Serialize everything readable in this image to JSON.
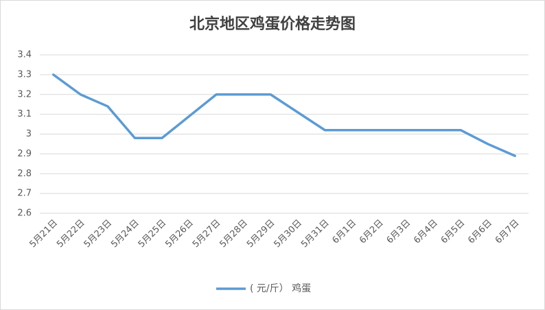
{
  "chart_data": {
    "type": "line",
    "title": "北京地区鸡蛋价格走势图",
    "categories": [
      "5月21日",
      "5月22日",
      "5月23日",
      "5月24日",
      "5月25日",
      "5月26日",
      "5月27日",
      "5月28日",
      "5月29日",
      "5月30日",
      "5月31日",
      "6月1日",
      "6月2日",
      "6月3日",
      "6月4日",
      "6月5日",
      "6月6日",
      "6月7日"
    ],
    "series": [
      {
        "name": "( 元/斤） 鸡蛋",
        "color": "#5b9bd5",
        "values": [
          3.3,
          3.2,
          3.14,
          2.98,
          2.98,
          3.09,
          3.2,
          3.2,
          3.2,
          3.11,
          3.02,
          3.02,
          3.02,
          3.02,
          3.02,
          3.02,
          2.95,
          2.89
        ]
      }
    ],
    "ylim": [
      2.6,
      3.4
    ],
    "yticks": [
      2.6,
      2.7,
      2.8,
      2.9,
      3,
      3.1,
      3.2,
      3.3,
      3.4
    ],
    "grid": true,
    "legend": "bottom"
  }
}
